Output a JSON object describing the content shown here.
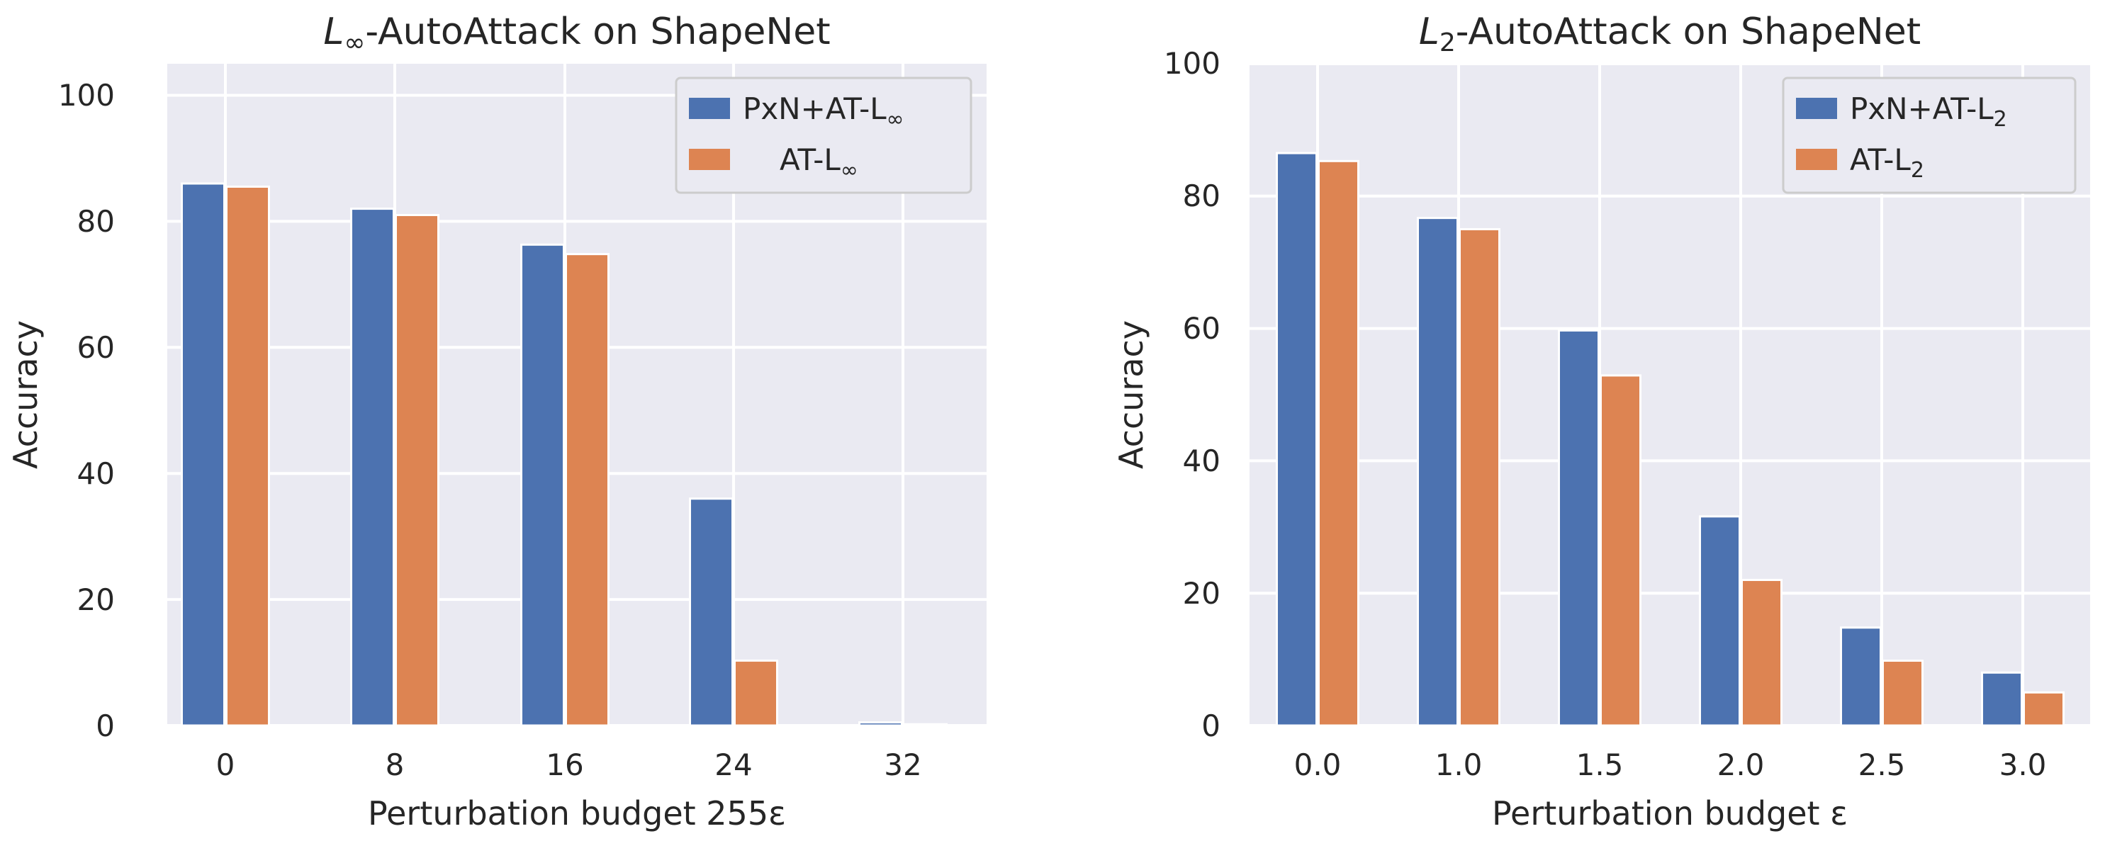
{
  "chart_data": [
    {
      "type": "bar",
      "title_prefix": "L",
      "title_sub": "∞",
      "title_rest": "-AutoAttack on ShapeNet",
      "xlabel": "Perturbation budget 255ε",
      "ylabel": "Accuracy",
      "categories": [
        "0",
        "8",
        "16",
        "24",
        "32"
      ],
      "yticks": [
        "0",
        "20",
        "40",
        "60",
        "80",
        "100"
      ],
      "ylim": [
        0,
        105
      ],
      "series": [
        {
          "name_prefix": "PxN+AT-L",
          "name_sub": "∞",
          "color": "#4c72b0",
          "values": [
            86.0,
            82.0,
            76.3,
            36.0,
            0.5
          ]
        },
        {
          "name_prefix": "AT-L",
          "name_sub": "∞",
          "color": "#dd8452",
          "values": [
            85.5,
            81.0,
            74.8,
            10.3,
            0.2
          ]
        }
      ],
      "legend": "top-right"
    },
    {
      "type": "bar",
      "title_prefix": "L",
      "title_sub": "2",
      "title_rest": "-AutoAttack on ShapeNet",
      "xlabel": "Perturbation budget ε",
      "ylabel": "Accuracy",
      "categories": [
        "0.0",
        "1.0",
        "1.5",
        "2.0",
        "2.5",
        "3.0"
      ],
      "yticks": [
        "0",
        "20",
        "40",
        "60",
        "80",
        "100"
      ],
      "ylim": [
        0,
        100
      ],
      "series": [
        {
          "name_prefix": "PxN+AT-L",
          "name_sub": "2",
          "color": "#4c72b0",
          "values": [
            86.5,
            76.7,
            59.7,
            31.6,
            14.8,
            8.0
          ]
        },
        {
          "name_prefix": "AT-L",
          "name_sub": "2",
          "color": "#dd8452",
          "values": [
            85.3,
            75.0,
            52.9,
            22.0,
            9.8,
            5.0
          ]
        }
      ],
      "legend": "top-right"
    }
  ]
}
